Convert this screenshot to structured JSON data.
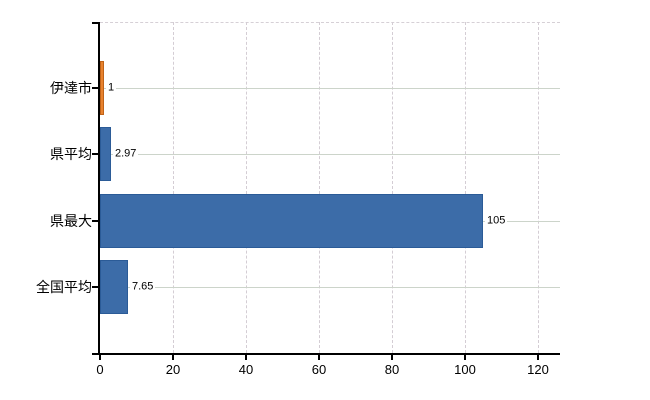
{
  "chart_data": {
    "type": "bar",
    "orientation": "horizontal",
    "title": "",
    "xlabel": "",
    "ylabel": "",
    "categories": [
      "伊達市",
      "県平均",
      "県最大",
      "全国平均"
    ],
    "values": [
      1,
      2.97,
      105,
      7.65
    ],
    "value_labels": [
      "1",
      "2.97",
      "105",
      "7.65"
    ],
    "bar_fill_colors": [
      "#e8822e",
      "#3c6ca8",
      "#3c6ca8",
      "#3c6ca8"
    ],
    "bar_border_colors": [
      "#c06318",
      "#2b5b97",
      "#2b5b97",
      "#2b5b97"
    ],
    "xticks": [
      0,
      20,
      40,
      60,
      80,
      100,
      120
    ],
    "xlim": [
      0,
      126
    ],
    "grid": true,
    "legend": "none"
  },
  "colors": {
    "highlight_orange": "#e8822e",
    "series_blue": "#3c6ca8",
    "axis": "#000000",
    "gridline_horizontal": "#ccd4ca",
    "gridline_vertical": "#d4cdd4",
    "plot_top_border": "#d6d0d6",
    "text": "#000000",
    "background": "#ffffff"
  }
}
